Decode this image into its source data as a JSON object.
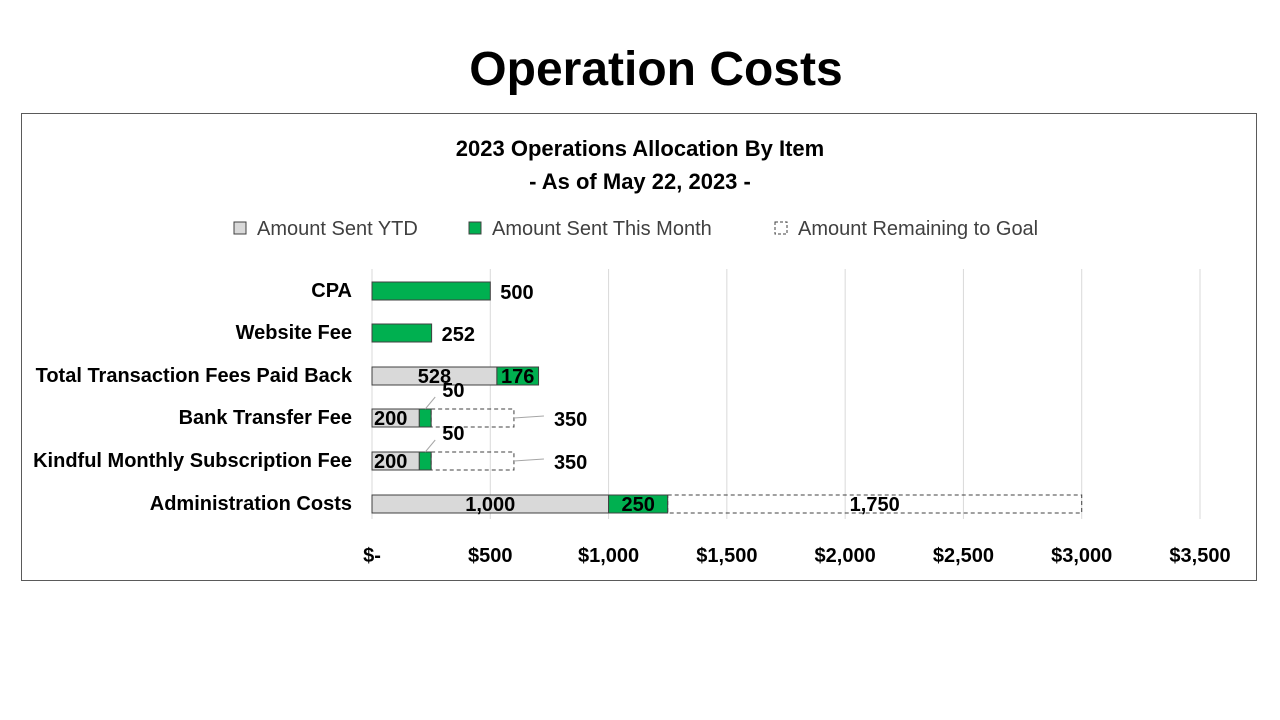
{
  "page": {
    "title": "Operation Costs"
  },
  "chart_data": {
    "type": "bar",
    "orientation": "horizontal",
    "stacked": true,
    "title": "2023 Operations Allocation By Item",
    "subtitle": "- As of May 22, 2023 -",
    "xlabel": "",
    "ylabel": "",
    "xlim": [
      0,
      3500
    ],
    "x_ticks": [
      0,
      500,
      1000,
      1500,
      2000,
      2500,
      3000,
      3500
    ],
    "x_tick_labels": [
      "$-",
      "$500",
      "$1,000",
      "$1,500",
      "$2,000",
      "$2,500",
      "$3,000",
      "$3,500"
    ],
    "grid": true,
    "legend_position": "top",
    "categories": [
      "CPA",
      "Website Fee",
      "Total Transaction Fees Paid Back",
      "Bank Transfer Fee",
      "Kindful Monthly Subscription Fee",
      "Administration Costs"
    ],
    "series": [
      {
        "name": "Amount Sent YTD",
        "color": "#d9d9d9",
        "style": "solid",
        "values": [
          null,
          null,
          528,
          200,
          200,
          1000
        ],
        "labels": [
          "",
          "",
          "528",
          "200",
          "200",
          "1,000"
        ]
      },
      {
        "name": "Amount Sent This Month",
        "color": "#00b050",
        "style": "solid",
        "values": [
          500,
          252,
          176,
          50,
          50,
          250
        ],
        "labels": [
          "500",
          "252",
          "176",
          "50",
          "50",
          "250"
        ]
      },
      {
        "name": "Amount Remaining to Goal",
        "color": "#ffffff",
        "style": "dashed",
        "values": [
          null,
          null,
          null,
          350,
          350,
          1750
        ],
        "labels": [
          "",
          "",
          "",
          "350",
          "350",
          "1,750"
        ]
      }
    ]
  }
}
